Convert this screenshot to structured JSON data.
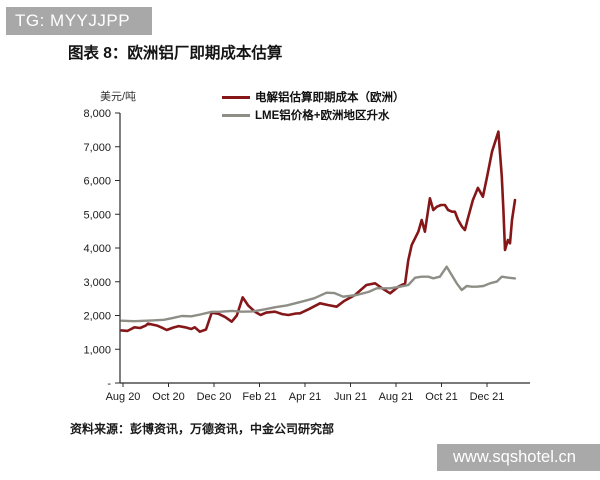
{
  "banner": {
    "text": "TG: MYYJJPP"
  },
  "title": "图表 8：欧洲铝厂即期成本估算",
  "unit_label": "美元/吨",
  "legend": [
    {
      "label": "电解铝估算即期成本（欧洲）",
      "color": "#851719"
    },
    {
      "label": "LME铝价格+欧洲地区升水",
      "color": "#8e8e87"
    }
  ],
  "source": "资料来源：彭博资讯，万德资讯，中金公司研究部",
  "watermark": "www.sqshotel.cn",
  "chart_data": {
    "type": "line",
    "title": "图表 8：欧洲铝厂即期成本估算",
    "ylabel": "美元/吨",
    "ylim": [
      0,
      8000
    ],
    "ytick_step": 1000,
    "ytick_labels": [
      "-",
      "1,000",
      "2,000",
      "3,000",
      "4,000",
      "5,000",
      "6,000",
      "7,000",
      "8,000"
    ],
    "grid": false,
    "legend_position": "top",
    "x_unit": "months_since_Aug_2020",
    "xticks": [
      0,
      2,
      4,
      6,
      8,
      10,
      12,
      14,
      16
    ],
    "xtick_labels": [
      "Aug 20",
      "Oct 20",
      "Dec 20",
      "Feb 21",
      "Apr 21",
      "Jun 21",
      "Aug 21",
      "Oct 21",
      "Dec 21"
    ],
    "series": [
      {
        "name": "电解铝估算即期成本（欧洲）",
        "color": "#851719",
        "width": 2.6,
        "points": [
          [
            -0.06,
            1560
          ],
          [
            0.2,
            1545
          ],
          [
            0.5,
            1650
          ],
          [
            0.75,
            1630
          ],
          [
            1.0,
            1700
          ],
          [
            1.1,
            1760
          ],
          [
            1.3,
            1730
          ],
          [
            1.5,
            1700
          ],
          [
            1.7,
            1640
          ],
          [
            1.92,
            1570
          ],
          [
            2.2,
            1640
          ],
          [
            2.45,
            1685
          ],
          [
            2.73,
            1650
          ],
          [
            3.0,
            1600
          ],
          [
            3.15,
            1650
          ],
          [
            3.38,
            1520
          ],
          [
            3.65,
            1585
          ],
          [
            3.9,
            2083
          ],
          [
            4.2,
            2050
          ],
          [
            4.5,
            1950
          ],
          [
            4.78,
            1816
          ],
          [
            5.0,
            2000
          ],
          [
            5.26,
            2540
          ],
          [
            5.5,
            2300
          ],
          [
            5.8,
            2113
          ],
          [
            6.05,
            2015
          ],
          [
            6.3,
            2085
          ],
          [
            6.68,
            2113
          ],
          [
            7.0,
            2040
          ],
          [
            7.27,
            2015
          ],
          [
            7.6,
            2060
          ],
          [
            7.78,
            2064
          ],
          [
            8.2,
            2200
          ],
          [
            8.66,
            2361
          ],
          [
            9.0,
            2310
          ],
          [
            9.39,
            2261
          ],
          [
            9.7,
            2420
          ],
          [
            10.2,
            2608
          ],
          [
            10.7,
            2904
          ],
          [
            11.08,
            2954
          ],
          [
            11.4,
            2800
          ],
          [
            11.74,
            2657
          ],
          [
            12.1,
            2854
          ],
          [
            12.4,
            2950
          ],
          [
            12.54,
            3640
          ],
          [
            12.69,
            4090
          ],
          [
            12.98,
            4483
          ],
          [
            13.13,
            4830
          ],
          [
            13.27,
            4483
          ],
          [
            13.49,
            5472
          ],
          [
            13.64,
            5126
          ],
          [
            13.8,
            5224
          ],
          [
            13.98,
            5274
          ],
          [
            14.15,
            5274
          ],
          [
            14.29,
            5126
          ],
          [
            14.46,
            5076
          ],
          [
            14.59,
            5076
          ],
          [
            14.73,
            4830
          ],
          [
            14.9,
            4632
          ],
          [
            15.03,
            4533
          ],
          [
            15.16,
            4879
          ],
          [
            15.38,
            5422
          ],
          [
            15.6,
            5780
          ],
          [
            15.82,
            5520
          ],
          [
            16.0,
            6100
          ],
          [
            16.22,
            6854
          ],
          [
            16.5,
            7450
          ],
          [
            16.65,
            6113
          ],
          [
            16.72,
            5126
          ],
          [
            16.79,
            3941
          ],
          [
            16.92,
            4237
          ],
          [
            17.01,
            4139
          ],
          [
            17.1,
            4830
          ],
          [
            17.23,
            5422
          ]
        ]
      },
      {
        "name": "LME铝价格+欧洲地区升水",
        "color": "#8e8e87",
        "width": 2.4,
        "points": [
          [
            -0.06,
            1846
          ],
          [
            0.5,
            1830
          ],
          [
            0.9,
            1842
          ],
          [
            1.3,
            1856
          ],
          [
            1.8,
            1872
          ],
          [
            2.2,
            1930
          ],
          [
            2.58,
            1986
          ],
          [
            3.0,
            1975
          ],
          [
            3.4,
            2030
          ],
          [
            3.9,
            2110
          ],
          [
            4.3,
            2112
          ],
          [
            4.8,
            2135
          ],
          [
            5.22,
            2113
          ],
          [
            5.7,
            2120
          ],
          [
            6.24,
            2184
          ],
          [
            6.7,
            2245
          ],
          [
            7.2,
            2300
          ],
          [
            7.85,
            2410
          ],
          [
            8.4,
            2510
          ],
          [
            8.95,
            2676
          ],
          [
            9.3,
            2665
          ],
          [
            9.68,
            2557
          ],
          [
            10.27,
            2608
          ],
          [
            10.8,
            2700
          ],
          [
            11.15,
            2806
          ],
          [
            11.74,
            2805
          ],
          [
            12.18,
            2854
          ],
          [
            12.54,
            2904
          ],
          [
            12.84,
            3121
          ],
          [
            13.13,
            3150
          ],
          [
            13.42,
            3150
          ],
          [
            13.64,
            3102
          ],
          [
            13.93,
            3150
          ],
          [
            14.23,
            3446
          ],
          [
            14.45,
            3200
          ],
          [
            14.67,
            2954
          ],
          [
            14.89,
            2756
          ],
          [
            15.11,
            2874
          ],
          [
            15.33,
            2854
          ],
          [
            15.55,
            2854
          ],
          [
            15.84,
            2874
          ],
          [
            16.13,
            2954
          ],
          [
            16.43,
            3003
          ],
          [
            16.65,
            3150
          ],
          [
            16.94,
            3121
          ],
          [
            17.23,
            3100
          ]
        ]
      }
    ]
  }
}
